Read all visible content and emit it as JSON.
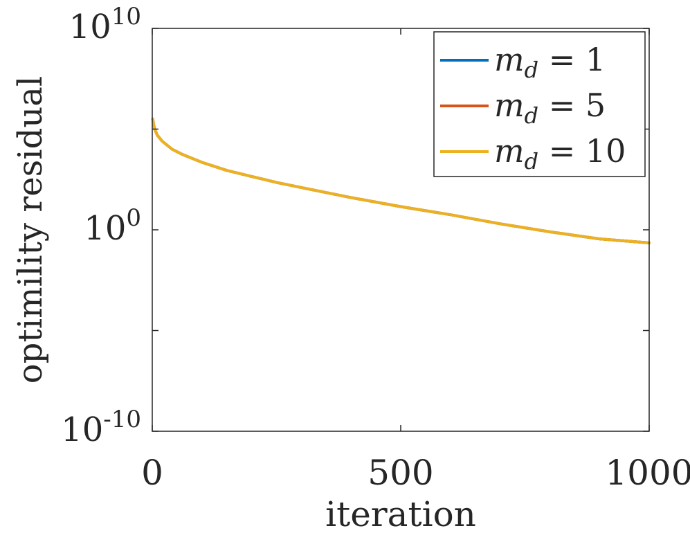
{
  "chart_data": {
    "type": "line",
    "xlabel": "iteration",
    "ylabel": "optimility residual",
    "xlim": [
      0,
      1000
    ],
    "ylim_exponent": [
      -10,
      10
    ],
    "y_scale": "log",
    "xticks": [
      {
        "value": 0,
        "label": "0"
      },
      {
        "value": 500,
        "label": "500"
      },
      {
        "value": 1000,
        "label": "1000"
      }
    ],
    "yticks": [
      {
        "exp": -10,
        "base": "10",
        "sup": "-10"
      },
      {
        "exp": 0,
        "base": "10",
        "sup": "0"
      },
      {
        "exp": 10,
        "base": "10",
        "sup": "10"
      }
    ],
    "minor_yticks_exp": [
      -5,
      5
    ],
    "grid": false,
    "legend_position": "top-right",
    "series": [
      {
        "name": "m_d = 1",
        "legend_main": "m",
        "legend_sub": "d",
        "legend_rest": " = 1",
        "color": "#0072BD",
        "x": [
          1,
          3,
          5,
          10,
          20,
          40,
          60,
          80,
          100,
          150,
          200,
          250,
          300,
          400,
          500,
          600,
          700,
          800,
          900,
          1000
        ],
        "y_exp": [
          5.5,
          5.2,
          5.0,
          4.7,
          4.4,
          4.0,
          3.75,
          3.55,
          3.35,
          2.95,
          2.65,
          2.35,
          2.1,
          1.6,
          1.15,
          0.75,
          0.3,
          -0.1,
          -0.45,
          -0.65
        ]
      },
      {
        "name": "m_d = 5",
        "legend_main": "m",
        "legend_sub": "d",
        "legend_rest": " = 5",
        "color": "#D95319",
        "x": [
          1,
          3,
          5,
          10,
          20,
          40,
          60,
          80,
          100,
          150,
          200,
          250,
          300,
          400,
          500,
          600,
          700,
          800,
          900,
          1000
        ],
        "y_exp": [
          5.5,
          5.2,
          5.0,
          4.7,
          4.4,
          4.0,
          3.75,
          3.55,
          3.35,
          2.95,
          2.65,
          2.35,
          2.1,
          1.6,
          1.15,
          0.75,
          0.3,
          -0.1,
          -0.45,
          -0.65
        ]
      },
      {
        "name": "m_d = 10",
        "legend_main": "m",
        "legend_sub": "d",
        "legend_rest": " = 10",
        "color": "#EDB120",
        "x": [
          1,
          3,
          5,
          10,
          20,
          40,
          60,
          80,
          100,
          150,
          200,
          250,
          300,
          400,
          500,
          600,
          700,
          800,
          900,
          1000
        ],
        "y_exp": [
          5.5,
          5.2,
          5.0,
          4.7,
          4.4,
          4.0,
          3.75,
          3.55,
          3.35,
          2.95,
          2.65,
          2.35,
          2.1,
          1.6,
          1.15,
          0.75,
          0.3,
          -0.1,
          -0.45,
          -0.65
        ]
      }
    ]
  }
}
